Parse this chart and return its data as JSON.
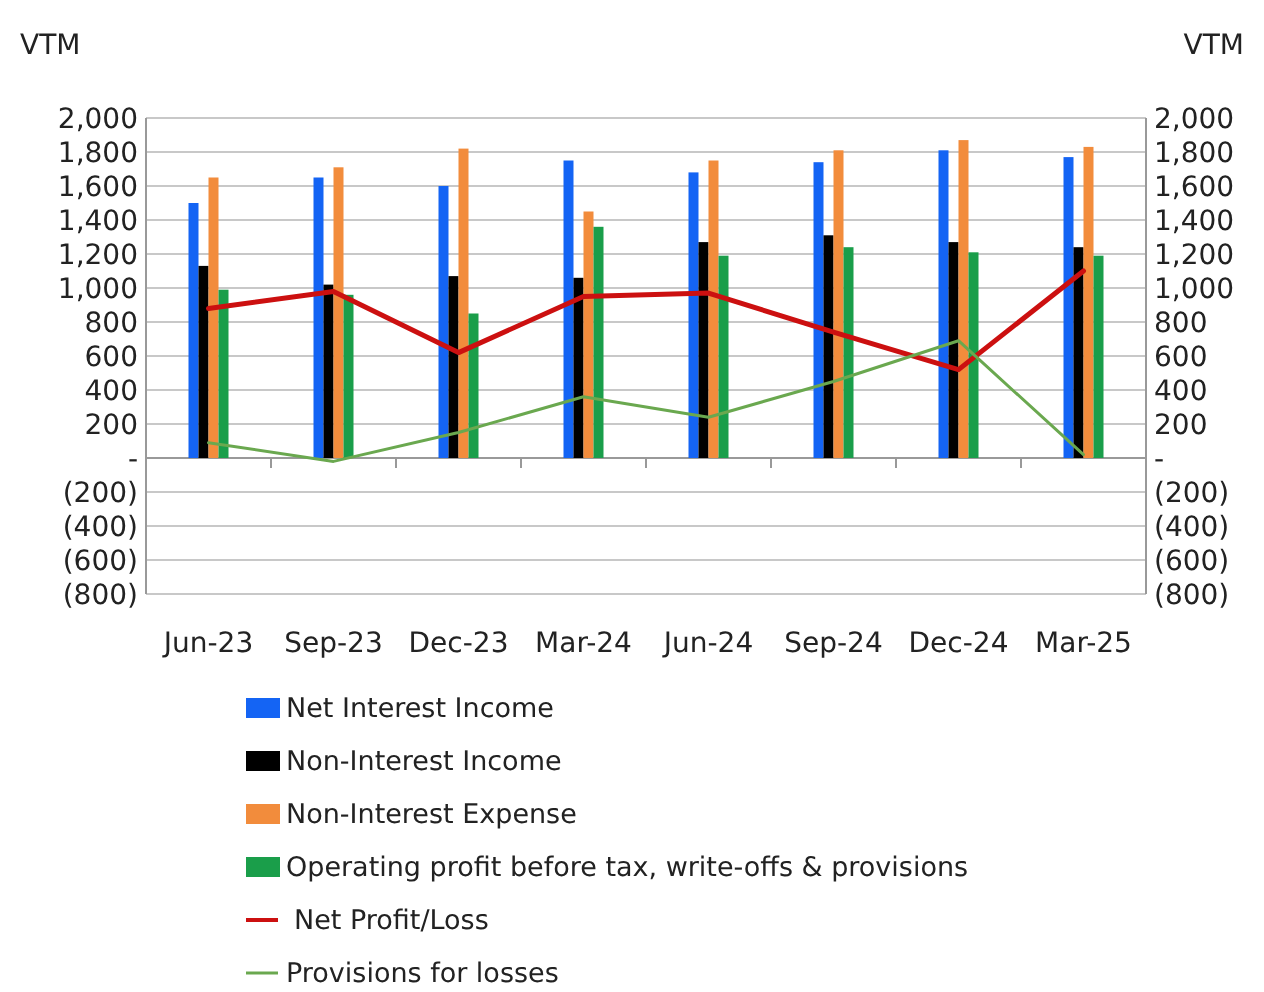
{
  "chart_data": {
    "type": "bar",
    "ylabel": "VTM",
    "y2label": "VTM",
    "categories": [
      "Jun-23",
      "Sep-23",
      "Dec-23",
      "Mar-24",
      "Jun-24",
      "Sep-24",
      "Dec-24",
      "Mar-25"
    ],
    "series": [
      {
        "name": "Net Interest Income",
        "color": "#1464f4",
        "values": [
          1500,
          1650,
          1600,
          1750,
          1680,
          1740,
          1810,
          1770
        ]
      },
      {
        "name": "Non-Interest Income",
        "color": "#000000",
        "values": [
          1130,
          1020,
          1070,
          1060,
          1270,
          1310,
          1270,
          1240
        ]
      },
      {
        "name": "Non-Interest Expense",
        "color": "#f28c3c",
        "values": [
          1650,
          1710,
          1820,
          1450,
          1750,
          1810,
          1870,
          1830
        ]
      },
      {
        "name": "Operating profit before tax, write-offs & provisions",
        "color": "#1a9e4a",
        "values": [
          990,
          960,
          850,
          1360,
          1190,
          1240,
          1210,
          1190
        ]
      },
      {
        "name": "Net Profit/Loss",
        "type": "line",
        "color": "#cc1010",
        "values": [
          880,
          980,
          620,
          950,
          970,
          740,
          520,
          1100
        ]
      },
      {
        "name": "Provisions for losses",
        "type": "line",
        "color": "#6aa84f",
        "values": [
          90,
          -20,
          150,
          360,
          240,
          450,
          690,
          20
        ]
      }
    ],
    "ylim": [
      -800,
      2000
    ],
    "yticks": [
      {
        "value": -800,
        "label": "(800)"
      },
      {
        "value": -600,
        "label": "(600)"
      },
      {
        "value": -400,
        "label": "(400)"
      },
      {
        "value": -200,
        "label": "(200)"
      },
      {
        "value": 0,
        "label": "-"
      },
      {
        "value": 200,
        "label": "200"
      },
      {
        "value": 400,
        "label": "400"
      },
      {
        "value": 600,
        "label": "600"
      },
      {
        "value": 800,
        "label": "800"
      },
      {
        "value": 1000,
        "label": "1,000"
      },
      {
        "value": 1200,
        "label": "1,200"
      },
      {
        "value": 1400,
        "label": "1,400"
      },
      {
        "value": 1600,
        "label": "1,600"
      },
      {
        "value": 1800,
        "label": "1,800"
      },
      {
        "value": 2000,
        "label": "2,000"
      }
    ],
    "y2lim": [
      -800,
      2000
    ],
    "y2ticks": [
      {
        "value": -800,
        "label": "(800)"
      },
      {
        "value": -600,
        "label": "(600)"
      },
      {
        "value": -400,
        "label": "(400)"
      },
      {
        "value": -200,
        "label": "(200)"
      },
      {
        "value": 0,
        "label": "-"
      },
      {
        "value": 200,
        "label": "200"
      },
      {
        "value": 400,
        "label": "400"
      },
      {
        "value": 600,
        "label": "600"
      },
      {
        "value": 800,
        "label": "800"
      },
      {
        "value": 1000,
        "label": "1,000"
      },
      {
        "value": 1200,
        "label": "1,200"
      },
      {
        "value": 1400,
        "label": "1,400"
      },
      {
        "value": 1600,
        "label": "1,600"
      },
      {
        "value": 1800,
        "label": "1,800"
      },
      {
        "value": 2000,
        "label": "2,000"
      }
    ],
    "grid": "y",
    "legend": "bottom"
  }
}
